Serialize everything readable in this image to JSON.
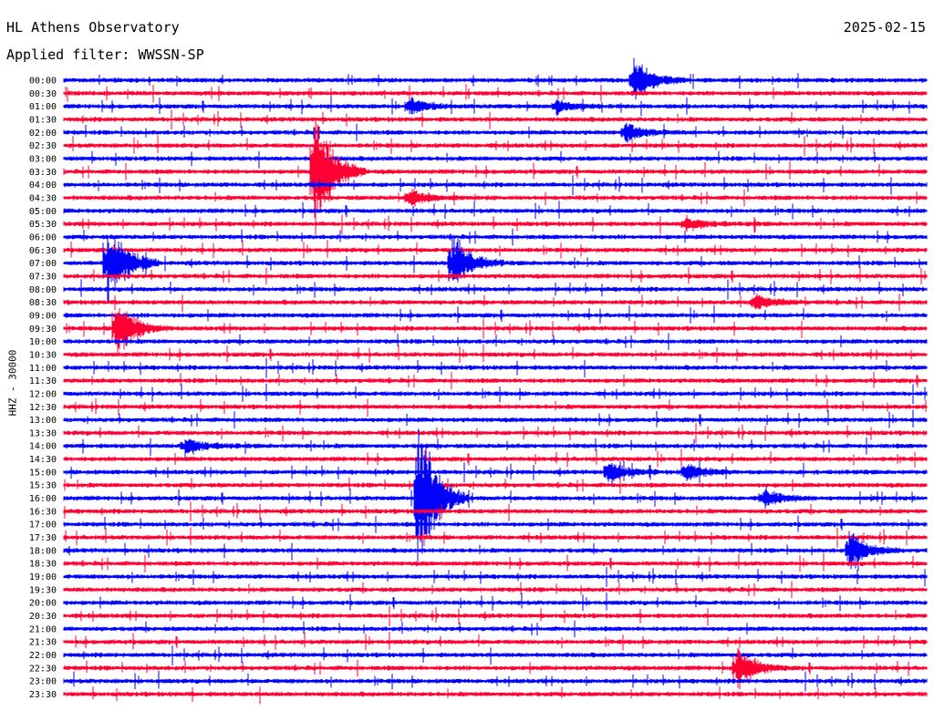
{
  "header": {
    "station": "HL Athens Observatory",
    "date": "2025-02-15",
    "filter_label": "Applied filter: WWSSN-SP"
  },
  "channel_label": "HHZ - 30000",
  "colors": {
    "even_trace": "#0000ff",
    "odd_trace": "#ff0033",
    "background": "#ffffff"
  },
  "chart_data": {
    "type": "line",
    "title": "HL Athens Observatory",
    "subtitle": "Applied filter: WWSSN-SP",
    "ylabel": "HHZ - 30000",
    "y_ticks": [
      "00:00",
      "00:30",
      "01:00",
      "01:30",
      "02:00",
      "02:30",
      "03:00",
      "03:30",
      "04:00",
      "04:30",
      "05:00",
      "05:30",
      "06:00",
      "06:30",
      "07:00",
      "07:30",
      "08:00",
      "08:30",
      "09:00",
      "09:30",
      "10:00",
      "10:30",
      "11:00",
      "11:30",
      "12:00",
      "12:30",
      "13:00",
      "13:30",
      "14:00",
      "14:30",
      "15:00",
      "15:30",
      "16:00",
      "16:30",
      "17:00",
      "17:30",
      "18:00",
      "18:30",
      "19:00",
      "19:30",
      "20:00",
      "20:30",
      "21:00",
      "21:30",
      "22:00",
      "22:30",
      "23:00",
      "23:30"
    ],
    "trace_colors": "alternating blue (:00) / red (:30)",
    "events": [
      {
        "trace": "00:00",
        "at_fraction": 0.66,
        "amplitude": 3.0
      },
      {
        "trace": "01:00",
        "at_fraction": 0.4,
        "amplitude": 1.2
      },
      {
        "trace": "01:00",
        "at_fraction": 0.57,
        "amplitude": 1.0
      },
      {
        "trace": "02:00",
        "at_fraction": 0.65,
        "amplitude": 1.3
      },
      {
        "trace": "03:30",
        "at_fraction": 0.29,
        "amplitude": 9.0
      },
      {
        "trace": "04:30",
        "at_fraction": 0.4,
        "amplitude": 1.2
      },
      {
        "trace": "05:30",
        "at_fraction": 0.72,
        "amplitude": 1.0
      },
      {
        "trace": "07:00",
        "at_fraction": 0.05,
        "amplitude": 6.0
      },
      {
        "trace": "07:00",
        "at_fraction": 0.45,
        "amplitude": 4.0
      },
      {
        "trace": "08:30",
        "at_fraction": 0.8,
        "amplitude": 1.3
      },
      {
        "trace": "09:30",
        "at_fraction": 0.06,
        "amplitude": 4.5
      },
      {
        "trace": "14:00",
        "at_fraction": 0.14,
        "amplitude": 1.3
      },
      {
        "trace": "15:00",
        "at_fraction": 0.63,
        "amplitude": 1.6
      },
      {
        "trace": "15:00",
        "at_fraction": 0.72,
        "amplitude": 1.3
      },
      {
        "trace": "16:00",
        "at_fraction": 0.41,
        "amplitude": 12.0
      },
      {
        "trace": "16:00",
        "at_fraction": 0.81,
        "amplitude": 1.4
      },
      {
        "trace": "18:00",
        "at_fraction": 0.91,
        "amplitude": 2.8
      },
      {
        "trace": "22:30",
        "at_fraction": 0.78,
        "amplitude": 3.0
      }
    ]
  }
}
